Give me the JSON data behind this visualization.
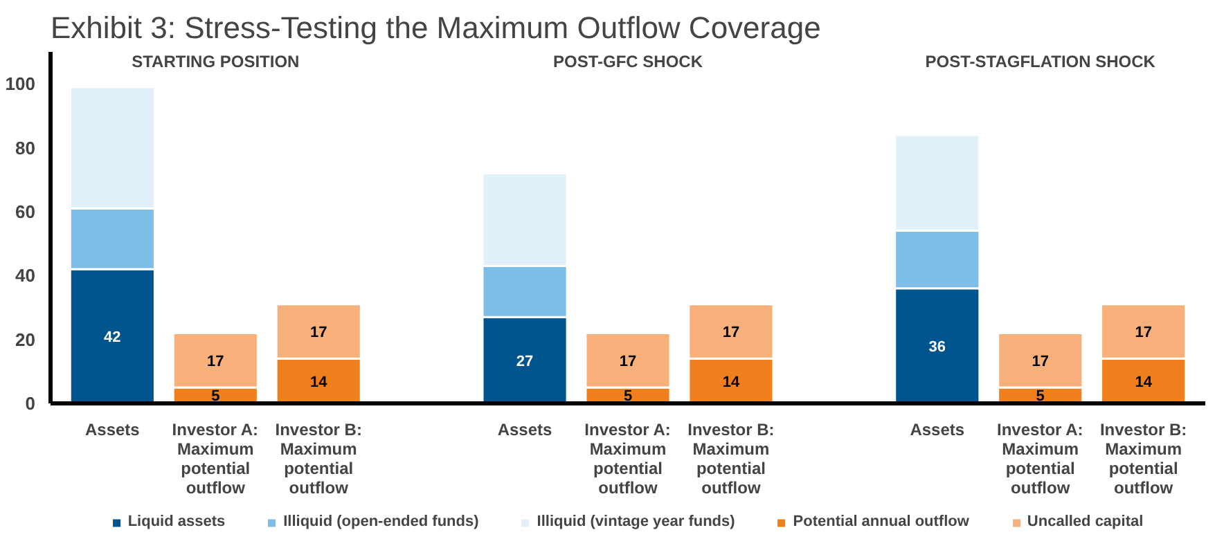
{
  "chart_data": {
    "type": "bar",
    "title": "Exhibit 3: Stress-Testing the Maximum Outflow Coverage",
    "categories": [
      "Assets",
      "Investor A:\nMaximum\npotential\noutflow",
      "Investor B:\nMaximum\npotential\noutflow",
      null,
      "Assets",
      "Investor A:\nMaximum\npotential\noutflow",
      "Investor B:\nMaximum\npotential\noutflow",
      null,
      "Assets",
      "Investor A:\nMaximum\npotential\noutflow",
      "Investor B:\nMaximum\npotential\noutflow"
    ],
    "stacked": true,
    "series": [
      {
        "name": "Liquid assets",
        "color": "#00558f",
        "values": [
          42,
          null,
          null,
          null,
          27,
          null,
          null,
          null,
          36,
          null,
          null
        ],
        "value_labels": [
          "42",
          null,
          null,
          null,
          "27",
          null,
          null,
          null,
          "36",
          null,
          null
        ]
      },
      {
        "name": "Illiquid (open-ended funds)",
        "color": "#7dbde8",
        "values": [
          19,
          null,
          null,
          null,
          16,
          null,
          null,
          null,
          18,
          null,
          null
        ]
      },
      {
        "name": "Illiquid (vintage year funds)",
        "color": "#e1f0f9",
        "values": [
          38,
          null,
          null,
          null,
          29,
          null,
          null,
          null,
          30,
          null,
          null
        ]
      },
      {
        "name": "Potential annual outflow",
        "color": "#f07f1e",
        "values": [
          null,
          5,
          14,
          null,
          null,
          5,
          14,
          null,
          null,
          5,
          14
        ],
        "value_labels": [
          null,
          "5",
          "14",
          null,
          null,
          "5",
          "14",
          null,
          null,
          "5",
          "14"
        ]
      },
      {
        "name": "Uncalled capital",
        "color": "#f7b07a",
        "values": [
          null,
          17,
          17,
          null,
          null,
          17,
          17,
          null,
          null,
          17,
          17
        ],
        "value_labels": [
          null,
          "17",
          "17",
          null,
          null,
          "17",
          "17",
          null,
          null,
          "17",
          "17"
        ]
      }
    ],
    "annotations": [
      "STARTING POSITION",
      "POST-GFC SHOCK",
      "POST-STAGFLATION SHOCK"
    ],
    "ylim": [
      0,
      110
    ],
    "yticks": [
      0,
      20,
      40,
      60,
      80,
      100
    ],
    "grid": false,
    "legend": "bottom"
  }
}
